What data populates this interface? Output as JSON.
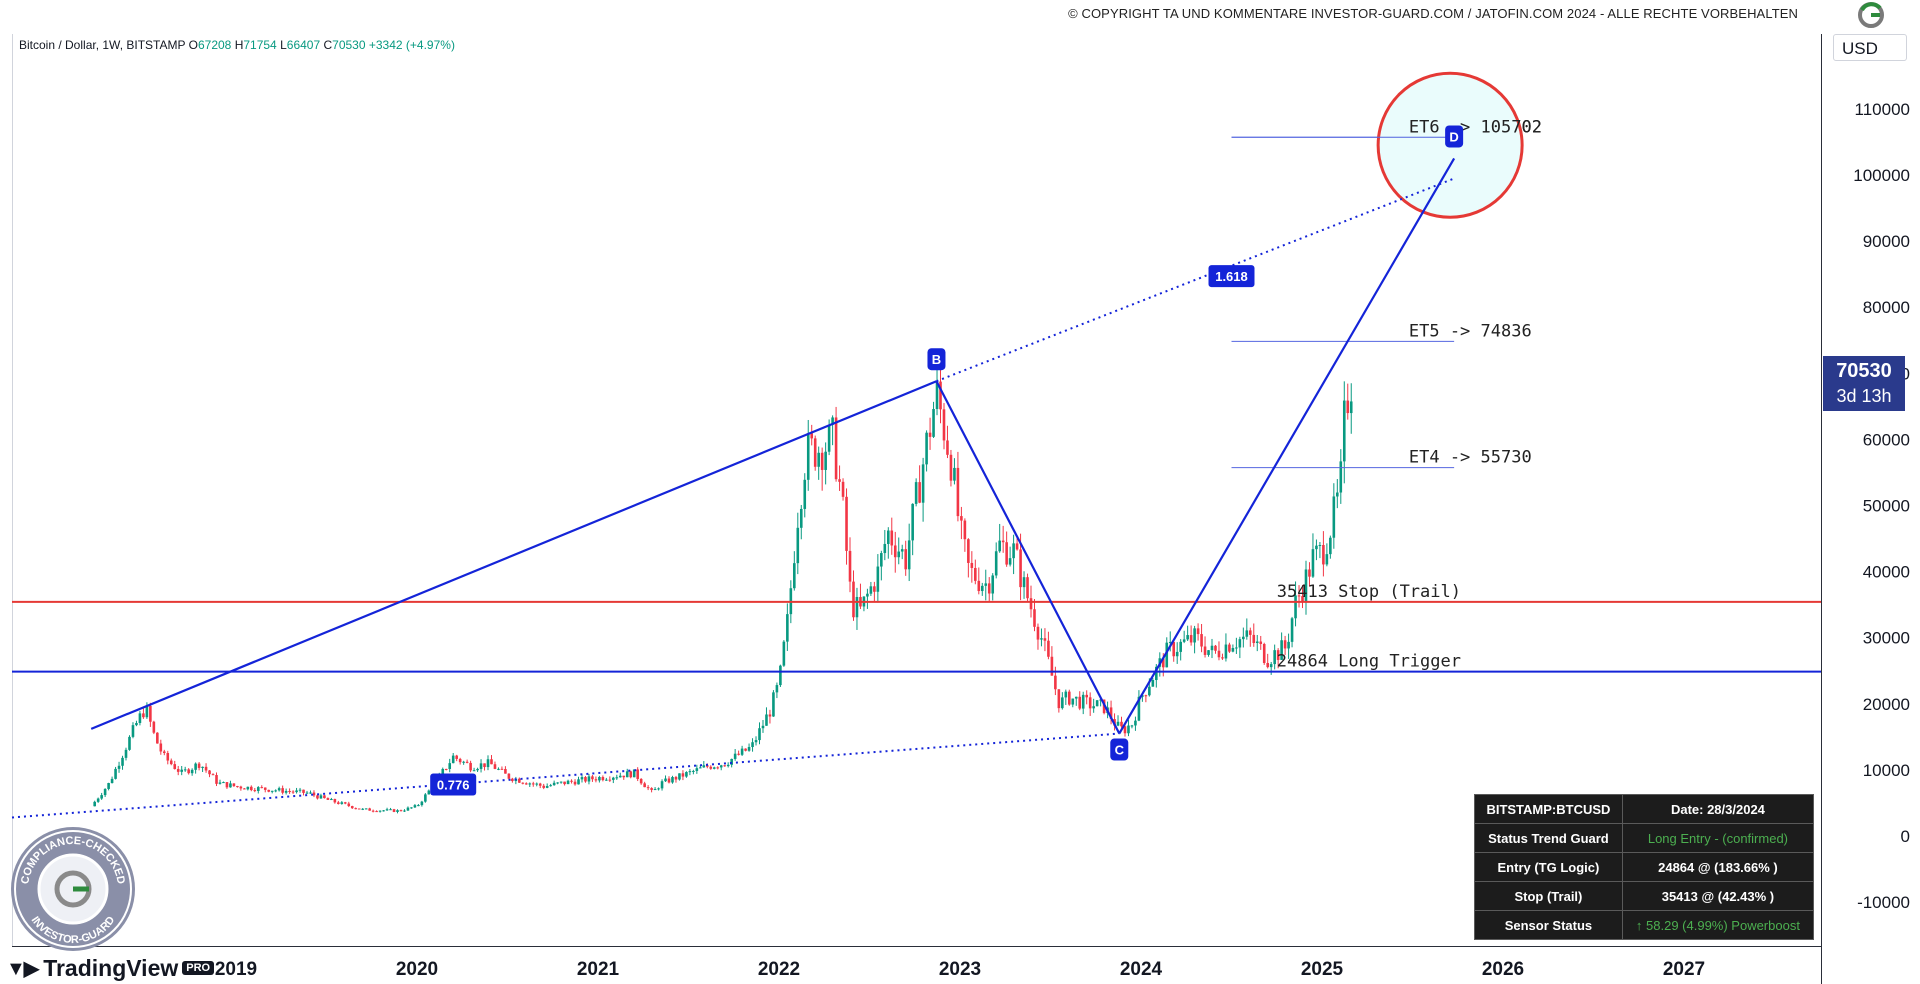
{
  "header": {
    "copyright": "© COPYRIGHT TA UND KOMMENTARE INVESTOR-GUARD.COM / JATOFIN.COM 2024 - ALLE RECHTE VORBEHALTEN",
    "logo_icon": "investor-guard-logo-icon"
  },
  "legend": {
    "symbol": "Bitcoin / Dollar, 1W, BITSTAMP",
    "open_label": "O",
    "open": "67208",
    "high_label": "H",
    "high": "71754",
    "low_label": "L",
    "low": "66407",
    "close_label": "C",
    "close": "70530",
    "change": "+3342 (+4.97%)"
  },
  "currency": "USD",
  "price_tag": {
    "price": "70530",
    "countdown": "3d 13h",
    "color": "#2a3a8c"
  },
  "branding": {
    "tradingview": "TradingView",
    "pro": "PRO"
  },
  "seal": {
    "top_text": "COMPLIANCE-CHECKED",
    "bottom_text": "INVESTOR-GUARD"
  },
  "status_table": {
    "rows": [
      [
        "BITSTAMP:BTCUSD",
        "Date: 28/3/2024"
      ],
      [
        "Status Trend Guard",
        "Long Entry - (confirmed)"
      ],
      [
        "Entry (TG Logic)",
        "24864 @ (183.66% )"
      ],
      [
        "Stop (Trail)",
        "35413 @ (42.43% )"
      ],
      [
        "Sensor Status",
        "↑ 58.29 (4.99%)  Powerboost"
      ]
    ]
  },
  "chart_data": {
    "type": "candlestick",
    "title": "",
    "x_ticks": [
      2019,
      2020,
      2021,
      2022,
      2023,
      2024,
      2025,
      2026,
      2027
    ],
    "y_ticks": [
      -10000,
      0,
      10000,
      20000,
      30000,
      40000,
      50000,
      60000,
      70000,
      80000,
      90000,
      100000,
      110000
    ],
    "xlim": [
      2018.2,
      2028.0
    ],
    "ylim": [
      -16000,
      122000
    ],
    "colors": {
      "up": "#089981",
      "down": "#f23645",
      "wave": "#1424d8",
      "stop": "#e53935",
      "trigger": "#1424d8"
    },
    "price_path": [
      [
        2018.2,
        4500
      ],
      [
        2018.3,
        8000
      ],
      [
        2018.4,
        14000
      ],
      [
        2018.45,
        17000
      ],
      [
        2018.5,
        19500
      ],
      [
        2018.55,
        15000
      ],
      [
        2018.6,
        12000
      ],
      [
        2018.7,
        9500
      ],
      [
        2018.8,
        11000
      ],
      [
        2018.9,
        8000
      ],
      [
        2019.0,
        7500
      ],
      [
        2019.2,
        7000
      ],
      [
        2019.4,
        6500
      ],
      [
        2019.5,
        5500
      ],
      [
        2019.7,
        4000
      ],
      [
        2019.9,
        3800
      ],
      [
        2020.0,
        4500
      ],
      [
        2020.1,
        8000
      ],
      [
        2020.2,
        12000
      ],
      [
        2020.3,
        10500
      ],
      [
        2020.4,
        11000
      ],
      [
        2020.5,
        9000
      ],
      [
        2020.6,
        8200
      ],
      [
        2020.7,
        7500
      ],
      [
        2020.8,
        8000
      ],
      [
        2021.0,
        8800
      ],
      [
        2021.2,
        9500
      ],
      [
        2021.3,
        6500
      ],
      [
        2021.35,
        8000
      ],
      [
        2021.5,
        9500
      ],
      [
        2021.6,
        10500
      ],
      [
        2021.7,
        11000
      ],
      [
        2021.85,
        13500
      ],
      [
        2021.95,
        19000
      ],
      [
        2022.0,
        23000
      ],
      [
        2022.05,
        33000
      ],
      [
        2022.1,
        48000
      ],
      [
        2022.15,
        58000
      ],
      [
        2022.25,
        59000
      ],
      [
        2022.3,
        60000
      ],
      [
        2022.35,
        50000
      ],
      [
        2022.4,
        35000
      ],
      [
        2022.45,
        34000
      ],
      [
        2022.55,
        40000
      ],
      [
        2022.6,
        46000
      ],
      [
        2022.7,
        42000
      ],
      [
        2022.8,
        57000
      ],
      [
        2022.87,
        67000
      ],
      [
        2022.95,
        57000
      ],
      [
        2023.0,
        46000
      ],
      [
        2023.05,
        40000
      ],
      [
        2023.15,
        38000
      ],
      [
        2023.22,
        44000
      ],
      [
        2023.3,
        43000
      ],
      [
        2023.35,
        38000
      ],
      [
        2023.45,
        30000
      ],
      [
        2023.55,
        20000
      ],
      [
        2023.6,
        21000
      ],
      [
        2023.7,
        20000
      ],
      [
        2023.8,
        19500
      ],
      [
        2023.87,
        16500
      ],
      [
        2023.9,
        16000
      ],
      [
        2023.95,
        17000
      ],
      [
        2024.0,
        21000
      ],
      [
        2024.05,
        23500
      ],
      [
        2024.15,
        28000
      ],
      [
        2024.3,
        30000
      ],
      [
        2024.4,
        27500
      ],
      [
        2024.5,
        29500
      ],
      [
        2024.6,
        30000
      ],
      [
        2024.7,
        27000
      ],
      [
        2024.8,
        28500
      ],
      [
        2024.85,
        35000
      ],
      [
        2024.9,
        38000
      ],
      [
        2024.95,
        42000
      ],
      [
        2025.0,
        43000
      ],
      [
        2025.05,
        47000
      ],
      [
        2025.1,
        52000
      ],
      [
        2025.12,
        62000
      ],
      [
        2025.15,
        68000
      ],
      [
        2025.18,
        70530
      ]
    ],
    "levels": [
      {
        "label": "35413  Stop (Trail)",
        "value": 35413,
        "color": "#e53935"
      },
      {
        "label": "24864  Long Trigger",
        "value": 24864,
        "color": "#1424d8"
      }
    ],
    "targets": [
      {
        "label": "ET6 -> 105702",
        "value": 105702
      },
      {
        "label": "ET5 -> 74836",
        "value": 74836
      },
      {
        "label": "ET4 -> 55730",
        "value": 55730
      }
    ],
    "wave_points": [
      {
        "label": "",
        "x": 2018.2,
        "y": 15300
      },
      {
        "label": "B",
        "x": 2022.87,
        "y": 68800
      },
      {
        "label": "C",
        "x": 2023.88,
        "y": 15500
      },
      {
        "label": "D",
        "x": 2025.73,
        "y": 102500
      }
    ],
    "ratios": [
      {
        "label": "1.618",
        "x": 2024.5,
        "y": 84700
      },
      {
        "label": "0.776",
        "x": 2020.2,
        "y": 7800
      }
    ]
  }
}
